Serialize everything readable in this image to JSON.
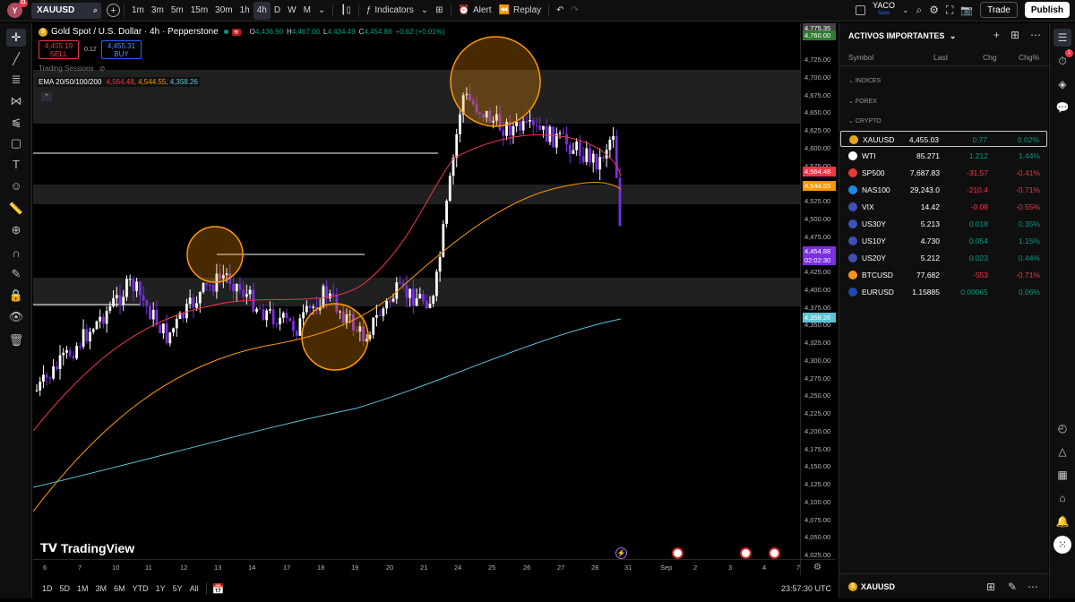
{
  "topbar": {
    "avatar_letter": "Y",
    "avatar_badge": "11",
    "symbol": "XAUUSD",
    "intervals": [
      "1m",
      "3m",
      "5m",
      "15m",
      "30m",
      "1h",
      "4h",
      "D",
      "W",
      "M"
    ],
    "active_interval": "4h",
    "indicators_label": "Indicators",
    "alert_label": "Alert",
    "replay_label": "Replay",
    "layout_name": "YACO",
    "layout_status": "Save",
    "trade_label": "Trade",
    "publish_label": "Publish"
  },
  "legend": {
    "title": "Gold Spot / U.S. Dollar · 4h · Pepperstone",
    "open_label": "O",
    "open": "4,436.90",
    "high_label": "H",
    "high": "4,467.00",
    "low_label": "L",
    "low": "4,434.49",
    "close_label": "C",
    "close": "4,454.88",
    "change": "+0.62 (+0.01%)",
    "sell_price": "4,455.19",
    "sell_label": "SELL",
    "buy_price": "4,455.31",
    "buy_label": "BUY",
    "spread": "0.12",
    "sessions_label": "Trading Sessions",
    "ema_label": "EMA 20/50/100/200",
    "ema_20": "4,564.48",
    "ema_50": "4,544.55",
    "ema_200": "4,358.26",
    "logo_text": "TradingView",
    "colors": {
      "ema20": "#f23645",
      "ema50": "#ff9800",
      "ema200": "#5bc4d6",
      "bull": "#ffffff",
      "bear": "#7b2fe0",
      "circle": "#ff9800"
    }
  },
  "price_axis": {
    "ticks": [
      "4,775.35",
      "4,760.00",
      "4,725.00",
      "4,700.00",
      "4,675.00",
      "4,650.00",
      "4,625.00",
      "4,600.00",
      "4,575.00",
      "4,550.00",
      "4,525.00",
      "4,500.00",
      "4,475.00",
      "4,450.00",
      "4,425.00",
      "4,400.00",
      "4,375.00",
      "4,350.00",
      "4,325.00",
      "4,300.00",
      "4,275.00",
      "4,250.00",
      "4,225.00",
      "4,200.00",
      "4,175.00",
      "4,150.00",
      "4,125.00",
      "4,100.00",
      "4,075.00",
      "4,050.00",
      "4,025.00"
    ],
    "labels": [
      {
        "text": "4,775.35",
        "bg": "#444444"
      },
      {
        "text": "4,760.00",
        "bg": "#2e7d32"
      },
      {
        "text": "4,564.48",
        "bg": "#f23645"
      },
      {
        "text": "4,544.55",
        "bg": "#ff9800"
      },
      {
        "text": "4,454.88",
        "bg": "#7b2fe0"
      },
      {
        "text": "02:02:30",
        "bg": "#7b2fe0"
      },
      {
        "text": "4,358.26",
        "bg": "#5bc4d6"
      }
    ]
  },
  "time_axis": {
    "ticks": [
      "6",
      "7",
      "10",
      "11",
      "12",
      "13",
      "14",
      "17",
      "18",
      "19",
      "20",
      "21",
      "24",
      "25",
      "26",
      "27",
      "28",
      "31",
      "Sep",
      "2",
      "3",
      "4",
      "7"
    ]
  },
  "bottombar": {
    "ranges": [
      "1D",
      "5D",
      "1M",
      "3M",
      "6M",
      "YTD",
      "1Y",
      "5Y",
      "All"
    ],
    "clock": "23:57:30 UTC"
  },
  "watchlist": {
    "title": "ACTIVOS IMPORTANTES",
    "columns": [
      "Symbol",
      "Last",
      "Chg",
      "Chg%"
    ],
    "groups": [
      "INDICES",
      "FOREX",
      "CRYPTO"
    ],
    "rows": [
      {
        "symbol": "XAUUSD",
        "last": "4,455.03",
        "chg": "0.77",
        "chgp": "0.02%",
        "dir": "pos",
        "icon": "gold-coin-icon",
        "color": "#e6a817",
        "selected": true
      },
      {
        "symbol": "WTI",
        "last": "85.271",
        "chg": "1.212",
        "chgp": "1.44%",
        "dir": "pos",
        "icon": "oil-drop-icon",
        "color": "#ffffff",
        "selected": false
      },
      {
        "symbol": "SP500",
        "last": "7,687.83",
        "chg": "-31.57",
        "chgp": "-0.41%",
        "dir": "neg",
        "icon": "sp500-icon",
        "color": "#e53935",
        "selected": false
      },
      {
        "symbol": "NAS100",
        "last": "29,243.0",
        "chg": "-210.4",
        "chgp": "-0.71%",
        "dir": "neg",
        "icon": "nasdaq-icon",
        "color": "#1e88e5",
        "selected": false
      },
      {
        "symbol": "VIX",
        "last": "14.42",
        "chg": "-0.08",
        "chgp": "-0.55%",
        "dir": "neg",
        "icon": "us-flag-icon",
        "color": "#3f51b5",
        "selected": false
      },
      {
        "symbol": "US30Y",
        "last": "5.213",
        "chg": "0.018",
        "chgp": "0.35%",
        "dir": "pos",
        "icon": "us-flag-icon",
        "color": "#3f51b5",
        "selected": false
      },
      {
        "symbol": "US10Y",
        "last": "4.730",
        "chg": "0.054",
        "chgp": "1.15%",
        "dir": "pos",
        "icon": "us-flag-icon",
        "color": "#3f51b5",
        "selected": false
      },
      {
        "symbol": "US20Y",
        "last": "5.212",
        "chg": "0.023",
        "chgp": "0.44%",
        "dir": "pos",
        "icon": "us-flag-icon",
        "color": "#3f51b5",
        "selected": false
      },
      {
        "symbol": "BTCUSD",
        "last": "77,682",
        "chg": "-553",
        "chgp": "-0.71%",
        "dir": "neg",
        "icon": "bitcoin-icon",
        "color": "#f7931a",
        "selected": false
      },
      {
        "symbol": "EURUSD",
        "last": "1.15885",
        "chg": "0.00065",
        "chgp": "0.06%",
        "dir": "pos",
        "icon": "eu-us-flag-icon",
        "color": "#1e4bb0",
        "selected": false
      }
    ],
    "footer_symbol": "XAUUSD"
  }
}
